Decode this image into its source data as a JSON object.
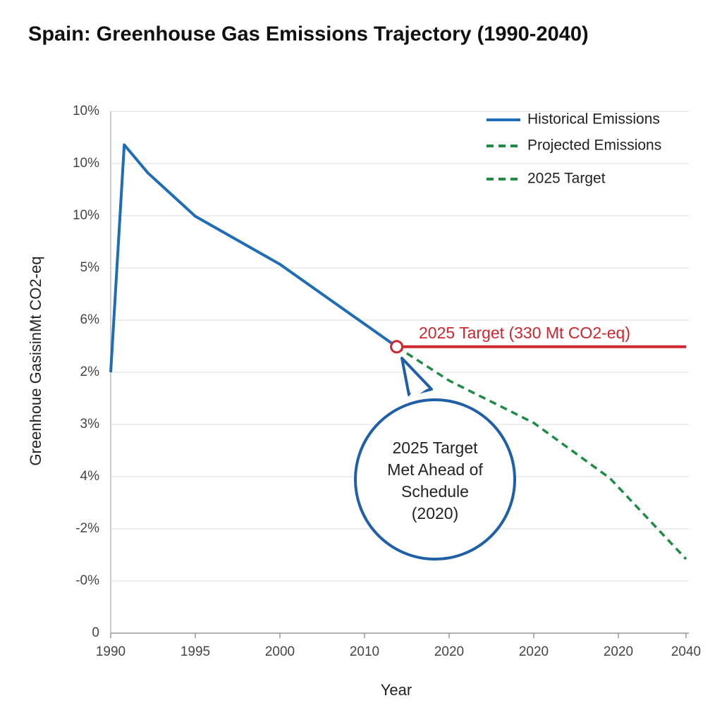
{
  "chart_data": {
    "type": "line",
    "title": "Spain: Greenhouse Gas Emissions Trajectory (1990-2040)",
    "x_label": "Year",
    "y_label": "Greenhoue GasisinMt CO2-eq",
    "xlim": [
      1990,
      2024
    ],
    "ylim": [
      0,
      10
    ],
    "xticks": [
      1990,
      1995,
      2000,
      {
        "value": 2005,
        "label": "2010"
      },
      {
        "value": 2010,
        "label": "2020"
      },
      {
        "value": 2015,
        "label": "2020"
      },
      {
        "value": 2020,
        "label": "2020"
      },
      {
        "value": 2024,
        "label": "2040"
      }
    ],
    "yticks": [
      0,
      {
        "value": 1,
        "label": "-0%"
      },
      {
        "value": 2,
        "label": "-2%"
      },
      {
        "value": 3,
        "label": "4%"
      },
      {
        "value": 4,
        "label": "3%"
      },
      {
        "value": 5,
        "label": "2%"
      },
      {
        "value": 6,
        "label": "6%"
      },
      {
        "value": 7,
        "label": "5%"
      },
      {
        "value": 8,
        "label": "10%"
      },
      {
        "value": 9,
        "label": "10%"
      },
      {
        "value": 10,
        "label": "10%"
      }
    ],
    "grid": true,
    "legend": "top-right",
    "series": [
      {
        "name": "Historical Emissions",
        "color": "#1f6db5",
        "dash": false,
        "x": [
          1990,
          1990.8,
          1992.2,
          1995,
          2000,
          2006.9
        ],
        "values": [
          5.0,
          9.36,
          8.82,
          7.99,
          7.07,
          5.49
        ]
      },
      {
        "name": "Projected Emissions",
        "color": "#1e8c45",
        "dash": true,
        "x": [
          2006.9,
          2010,
          2015,
          2019.5,
          2024
        ],
        "values": [
          5.49,
          4.84,
          4.03,
          2.97,
          1.42
        ]
      },
      {
        "name": "2025 Target",
        "color": "#d0262f",
        "legend_color": "#1e8c45",
        "dash": false,
        "legend_dash": true,
        "x": [
          2006.9,
          2024
        ],
        "values": [
          5.49,
          5.49
        ]
      }
    ],
    "annotations": [
      {
        "text": "2025 Target (330 Mt CO2-eq)",
        "color": "#d0262f"
      },
      {
        "lines": [
          "2025 Target",
          "Met Ahead of",
          "Schedule",
          "(2020)"
        ],
        "color": "#1f5fa8"
      }
    ]
  }
}
